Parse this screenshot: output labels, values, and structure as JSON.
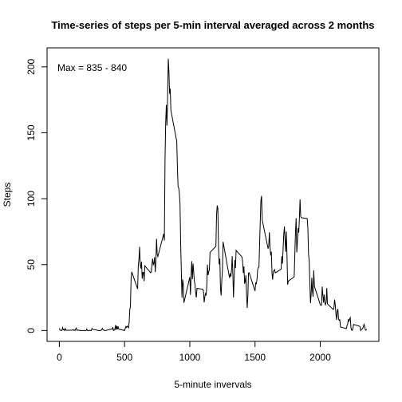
{
  "chart_data": {
    "type": "line",
    "title": "Time-series of steps per 5-min interval averaged across 2 months",
    "xlabel": "5-minute invervals",
    "ylabel": "Steps",
    "annotation": "Max = 835 - 840",
    "color": "#000000",
    "x": [
      0,
      5,
      10,
      15,
      20,
      25,
      30,
      35,
      40,
      45,
      50,
      55,
      100,
      105,
      110,
      115,
      120,
      125,
      130,
      135,
      140,
      145,
      150,
      155,
      200,
      205,
      210,
      215,
      220,
      225,
      230,
      235,
      240,
      245,
      250,
      255,
      300,
      305,
      310,
      315,
      320,
      325,
      330,
      335,
      340,
      345,
      350,
      355,
      400,
      405,
      410,
      415,
      420,
      425,
      430,
      435,
      440,
      445,
      450,
      455,
      500,
      505,
      510,
      515,
      520,
      525,
      530,
      535,
      540,
      545,
      550,
      555,
      600,
      605,
      610,
      615,
      620,
      625,
      630,
      635,
      640,
      645,
      650,
      655,
      700,
      705,
      710,
      715,
      720,
      725,
      730,
      735,
      740,
      745,
      750,
      755,
      800,
      805,
      810,
      815,
      820,
      825,
      830,
      835,
      840,
      845,
      850,
      855,
      900,
      905,
      910,
      915,
      920,
      925,
      930,
      935,
      940,
      945,
      950,
      955,
      1000,
      1005,
      1010,
      1015,
      1020,
      1025,
      1030,
      1035,
      1040,
      1045,
      1050,
      1055,
      1100,
      1105,
      1110,
      1115,
      1120,
      1125,
      1130,
      1135,
      1140,
      1145,
      1150,
      1155,
      1200,
      1205,
      1210,
      1215,
      1220,
      1225,
      1230,
      1235,
      1240,
      1245,
      1250,
      1255,
      1300,
      1305,
      1310,
      1315,
      1320,
      1325,
      1330,
      1335,
      1340,
      1345,
      1350,
      1355,
      1400,
      1405,
      1410,
      1415,
      1420,
      1425,
      1430,
      1435,
      1440,
      1445,
      1450,
      1455,
      1500,
      1505,
      1510,
      1515,
      1520,
      1525,
      1530,
      1535,
      1540,
      1545,
      1550,
      1555,
      1600,
      1605,
      1610,
      1615,
      1620,
      1625,
      1630,
      1635,
      1640,
      1645,
      1650,
      1655,
      1700,
      1705,
      1710,
      1715,
      1720,
      1725,
      1730,
      1735,
      1740,
      1745,
      1750,
      1755,
      1800,
      1805,
      1810,
      1815,
      1820,
      1825,
      1830,
      1835,
      1840,
      1845,
      1850,
      1855,
      1900,
      1905,
      1910,
      1915,
      1920,
      1925,
      1930,
      1935,
      1940,
      1945,
      1950,
      1955,
      2000,
      2005,
      2010,
      2015,
      2020,
      2025,
      2030,
      2035,
      2040,
      2045,
      2050,
      2055,
      2100,
      2105,
      2110,
      2115,
      2120,
      2125,
      2130,
      2135,
      2140,
      2145,
      2150,
      2155,
      2200,
      2205,
      2210,
      2215,
      2220,
      2225,
      2230,
      2235,
      2240,
      2245,
      2250,
      2255,
      2300,
      2305,
      2310,
      2315,
      2320,
      2325,
      2330,
      2335,
      2340,
      2345,
      2350,
      2355
    ],
    "values": [
      1.72,
      0.34,
      0.13,
      0.15,
      0.08,
      2.09,
      0.53,
      0.87,
      0,
      1.47,
      0.3,
      0.13,
      0.32,
      0.68,
      0.15,
      0.34,
      0,
      1.11,
      1.83,
      0.17,
      0.17,
      0.38,
      0.26,
      0,
      0,
      0,
      1.13,
      0,
      0,
      0.13,
      0,
      0.23,
      0,
      0,
      1.55,
      0.94,
      0,
      0,
      0,
      0,
      0.21,
      0.62,
      1.62,
      0.58,
      0.49,
      0.08,
      0,
      0,
      1.19,
      0.94,
      2.57,
      0,
      0.34,
      0.36,
      4.11,
      0.66,
      3.49,
      0.83,
      3.11,
      1.11,
      0,
      1.57,
      3,
      2.25,
      3.32,
      2.96,
      2.09,
      6.06,
      16.02,
      18.34,
      39.45,
      44.49,
      31.49,
      49.26,
      53.77,
      63.45,
      49.96,
      47.08,
      52.15,
      39.34,
      44.02,
      44.17,
      37.36,
      49.04,
      43.81,
      44.38,
      50.51,
      54.51,
      49.92,
      50.98,
      55.68,
      44.32,
      52.26,
      69.55,
      57.85,
      56.15,
      73.38,
      68.21,
      129.43,
      157.53,
      171.15,
      155.4,
      177.3,
      206.17,
      195.92,
      179.57,
      183.4,
      167.02,
      143.45,
      124.04,
      109.11,
      108.11,
      103.72,
      95.97,
      66.21,
      45.23,
      24.79,
      38.75,
      34.98,
      21.06,
      40.57,
      26.98,
      42.42,
      52.66,
      38.92,
      50.79,
      44.28,
      37.42,
      34.7,
      28.34,
      25.09,
      31.94,
      31.36,
      29.68,
      21.32,
      25.55,
      28.38,
      26.47,
      33.43,
      49.98,
      42.04,
      44.6,
      46.04,
      59.19,
      63.87,
      87.7,
      94.85,
      92.77,
      63.4,
      50.17,
      54.47,
      32.42,
      26.53,
      37.74,
      45.06,
      67.28,
      42.34,
      39.89,
      43.26,
      40.98,
      46.25,
      56.43,
      42.75,
      25.13,
      39.97,
      53.55,
      47.32,
      60.81,
      55.75,
      51.96,
      43.58,
      48.7,
      35.47,
      37.55,
      41.85,
      27.51,
      17.11,
      26.08,
      43.62,
      43.77,
      30.02,
      36.08,
      35.49,
      38.85,
      45.96,
      47.75,
      48.13,
      65.32,
      82.91,
      98.66,
      102.11,
      83.96,
      62.13,
      64.13,
      74.55,
      63.17,
      56.91,
      59.77,
      43.87,
      38.57,
      44.66,
      45.45,
      46.21,
      43.68,
      46.62,
      56.3,
      50.72,
      61.23,
      72.72,
      78.94,
      68.94,
      59.66,
      75.09,
      56.51,
      34.77,
      37.45,
      40.68,
      58.02,
      74.7,
      85.32,
      59.26,
      67.77,
      77.7,
      74.25,
      85.34,
      99.45,
      86.58,
      85.6,
      84.87,
      77.83,
      58.04,
      53.36,
      36.32,
      20.72,
      27.4,
      40.02,
      30.21,
      25.55,
      45.66,
      33.53,
      19.62,
      19.02,
      19.34,
      33.34,
      26.81,
      21.17,
      27.3,
      21.34,
      19.55,
      21.32,
      32.3,
      20.15,
      15.94,
      17.23,
      23.45,
      19.25,
      12.45,
      8.02,
      14.66,
      16.3,
      8.68,
      7.79,
      8.13,
      2.62,
      1.45,
      3.68,
      4.81,
      8.51,
      7.08,
      8.7,
      9.75,
      2.21,
      0.32,
      0.11,
      1.6,
      4.6,
      3.3,
      2.85,
      0,
      0.83,
      0.96,
      1.58,
      2.6,
      4.7,
      3.3,
      0.64,
      0.23,
      1.08
    ],
    "xlim": [
      -94.2,
      2449.2
    ],
    "ylim": [
      -8.25,
      214.42
    ],
    "xticks": [
      0,
      500,
      1000,
      1500,
      2000
    ],
    "yticks": [
      0,
      50,
      100,
      150,
      200
    ]
  }
}
